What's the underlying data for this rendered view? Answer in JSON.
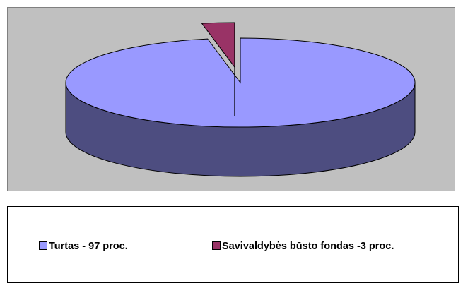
{
  "chart_data": {
    "type": "pie3d",
    "categories": [
      "Turtas - 97 proc.",
      "Savivaldybės būsto fondas -3 proc."
    ],
    "values": [
      97,
      3
    ],
    "colors": [
      "#9999ff",
      "#993366"
    ],
    "exploded": [
      false,
      true
    ],
    "legend": "bottom"
  }
}
